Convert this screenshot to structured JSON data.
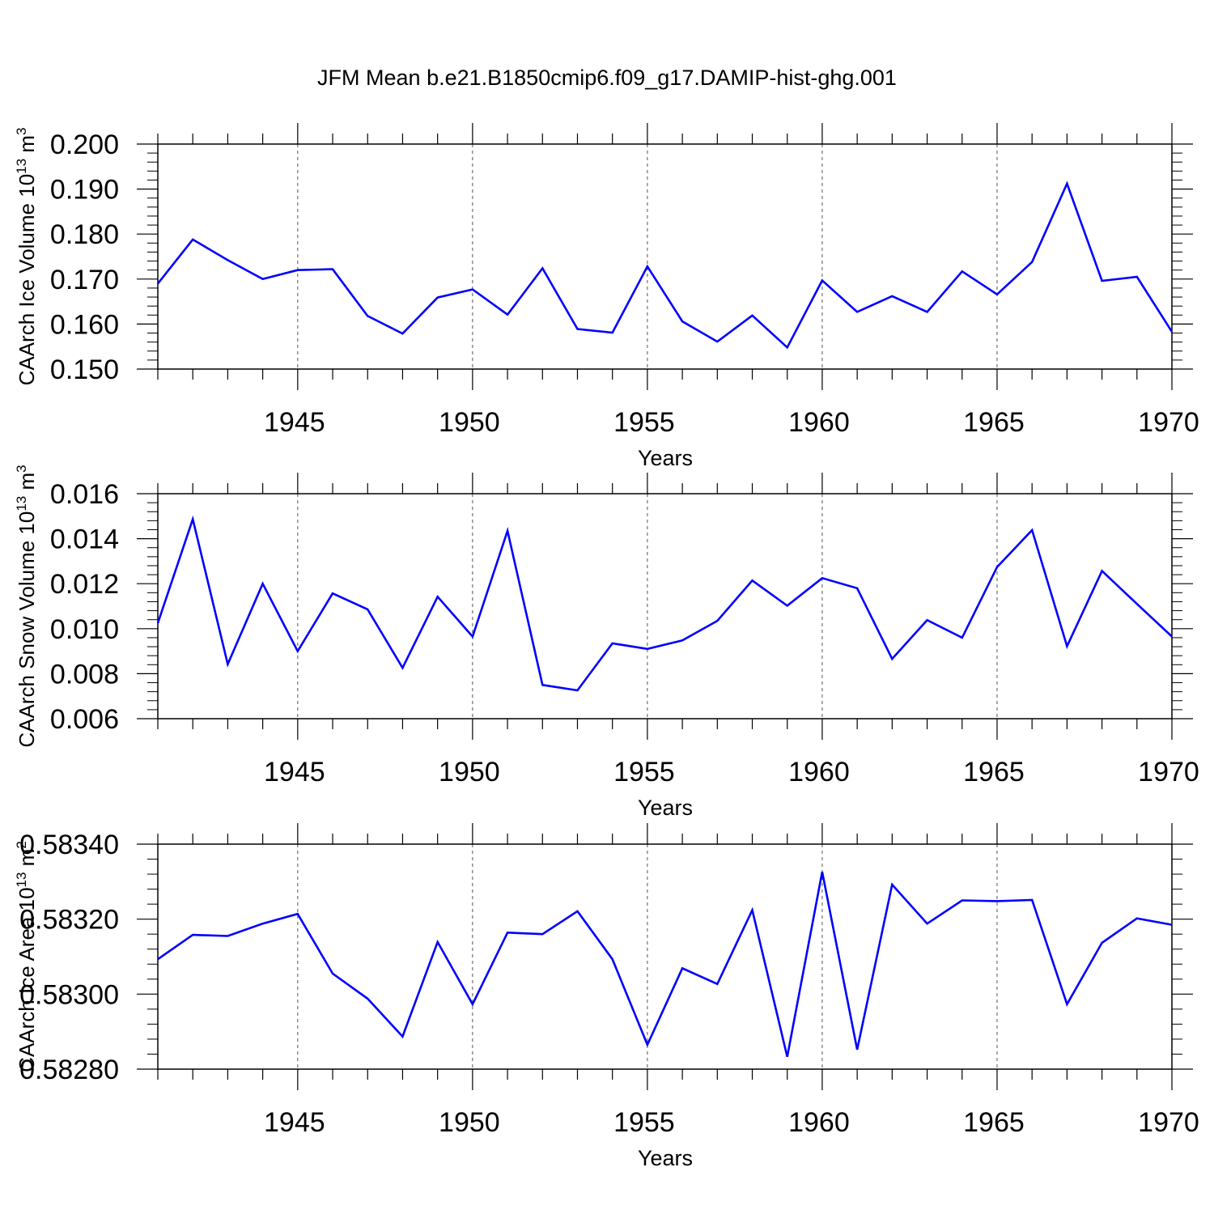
{
  "title": "JFM Mean b.e21.B1850cmip6.f09_g17.DAMIP-hist-ghg.001",
  "line_color": "#0000ff",
  "chart_data": [
    {
      "type": "line",
      "ylabel": "CAArch Ice Volume 10",
      "ylabel_exp": "13",
      "ylabel_unit": " m",
      "ylabel_unit_exp": "3",
      "xlabel": "Years",
      "xlim": [
        1941,
        1970
      ],
      "ylim": [
        0.15,
        0.2
      ],
      "yticks": [
        0.15,
        0.16,
        0.17,
        0.18,
        0.19,
        0.2
      ],
      "ytick_labels": [
        "0.150",
        "0.160",
        "0.170",
        "0.180",
        "0.190",
        "0.200"
      ],
      "xticks": [
        1945,
        1950,
        1955,
        1960,
        1965,
        1970
      ],
      "xtick_labels": [
        "1945",
        "1950",
        "1955",
        "1960",
        "1965",
        "1970"
      ],
      "x": [
        1941,
        1942,
        1943,
        1944,
        1945,
        1946,
        1947,
        1948,
        1949,
        1950,
        1951,
        1952,
        1953,
        1954,
        1955,
        1956,
        1957,
        1958,
        1959,
        1960,
        1961,
        1962,
        1963,
        1964,
        1965,
        1966,
        1967,
        1968,
        1969,
        1970
      ],
      "y": [
        0.169,
        0.1788,
        0.1742,
        0.17,
        0.172,
        0.1722,
        0.1618,
        0.1579,
        0.1659,
        0.1677,
        0.1621,
        0.1724,
        0.1589,
        0.1581,
        0.1728,
        0.1606,
        0.1561,
        0.1619,
        0.1548,
        0.1697,
        0.1627,
        0.1662,
        0.1627,
        0.1717,
        0.1666,
        0.1738,
        0.1912,
        0.1696,
        0.1705,
        0.1583
      ]
    },
    {
      "type": "line",
      "ylabel": "CAArch Snow Volume 10",
      "ylabel_exp": "13",
      "ylabel_unit": " m",
      "ylabel_unit_exp": "3",
      "xlabel": "Years",
      "xlim": [
        1941,
        1970
      ],
      "ylim": [
        0.006,
        0.016
      ],
      "yticks": [
        0.006,
        0.008,
        0.01,
        0.012,
        0.014,
        0.016
      ],
      "ytick_labels": [
        "0.006",
        "0.008",
        "0.010",
        "0.012",
        "0.014",
        "0.016"
      ],
      "xticks": [
        1945,
        1950,
        1955,
        1960,
        1965,
        1970
      ],
      "xtick_labels": [
        "1945",
        "1950",
        "1955",
        "1960",
        "1965",
        "1970"
      ],
      "x": [
        1941,
        1942,
        1943,
        1944,
        1945,
        1946,
        1947,
        1948,
        1949,
        1950,
        1951,
        1952,
        1953,
        1954,
        1955,
        1956,
        1957,
        1958,
        1959,
        1960,
        1961,
        1962,
        1963,
        1964,
        1965,
        1966,
        1967,
        1968,
        1969,
        1970
      ],
      "y": [
        0.01025,
        0.01487,
        0.00842,
        0.012,
        0.009,
        0.01157,
        0.01086,
        0.00826,
        0.01142,
        0.00965,
        0.01435,
        0.0075,
        0.00726,
        0.00935,
        0.0091,
        0.00948,
        0.01035,
        0.01214,
        0.01102,
        0.01225,
        0.0118,
        0.00866,
        0.01038,
        0.0096,
        0.01274,
        0.01438,
        0.00922,
        0.01257,
        0.0111,
        0.00965
      ]
    },
    {
      "type": "line",
      "ylabel": "CAArch Ice Area 10",
      "ylabel_exp": "13",
      "ylabel_unit": " m",
      "ylabel_unit_exp": "2",
      "xlabel": "Years",
      "xlim": [
        1941,
        1970
      ],
      "ylim": [
        0.5828,
        0.5834
      ],
      "yticks": [
        0.5828,
        0.583,
        0.5832,
        0.5834
      ],
      "ytick_labels": [
        "0.58280",
        "0.58300",
        "0.58320",
        "0.58340"
      ],
      "xticks": [
        1945,
        1950,
        1955,
        1960,
        1965,
        1970
      ],
      "xtick_labels": [
        "1945",
        "1950",
        "1955",
        "1960",
        "1965",
        "1970"
      ],
      "x": [
        1941,
        1942,
        1943,
        1944,
        1945,
        1946,
        1947,
        1948,
        1949,
        1950,
        1951,
        1952,
        1953,
        1954,
        1955,
        1956,
        1957,
        1958,
        1959,
        1960,
        1961,
        1962,
        1963,
        1964,
        1965,
        1966,
        1967,
        1968,
        1969,
        1970
      ],
      "y": [
        0.583093,
        0.583158,
        0.583155,
        0.583188,
        0.583214,
        0.583055,
        0.582988,
        0.582887,
        0.583139,
        0.582973,
        0.583164,
        0.58316,
        0.583221,
        0.583093,
        0.582865,
        0.583069,
        0.583027,
        0.583224,
        0.582833,
        0.583326,
        0.582852,
        0.583292,
        0.583188,
        0.58325,
        0.583248,
        0.583251,
        0.582973,
        0.583137,
        0.583202,
        0.583185
      ]
    }
  ]
}
